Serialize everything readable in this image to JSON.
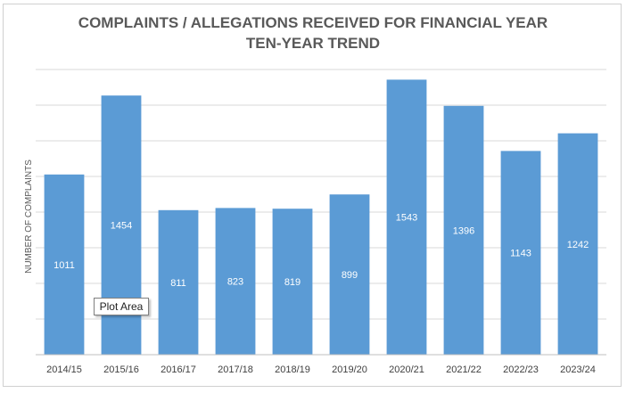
{
  "chart_data": {
    "type": "bar",
    "title_line1": "COMPLAINTS / ALLEGATIONS RECEIVED FOR FINANCIAL YEAR",
    "title_line2": "TEN-YEAR TREND",
    "ylabel": "NUMBER OF COMPLAINTS",
    "xlabel": "",
    "categories": [
      "2014/15",
      "2015/16",
      "2016/17",
      "2017/18",
      "2018/19",
      "2019/20",
      "2020/21",
      "2021/22",
      "2022/23",
      "2023/24"
    ],
    "values": [
      1011,
      1454,
      811,
      823,
      819,
      899,
      1543,
      1396,
      1143,
      1242
    ],
    "ylim": [
      0,
      1600
    ],
    "ytick_step": 200,
    "grid": true,
    "bar_color": "#5b9bd5",
    "data_label_color": "#ffffff",
    "gridline_color": "#d9d9d9"
  },
  "tooltip": {
    "text": "Plot Area"
  }
}
